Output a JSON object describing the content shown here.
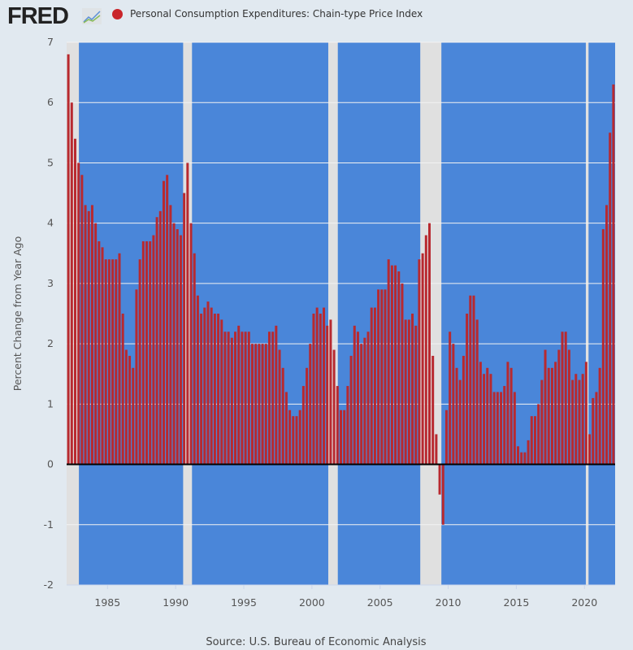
{
  "header": {
    "logo_text": "FRED",
    "legend_label": "Personal Consumption Expenditures: Chain-type Price Index"
  },
  "colors": {
    "series": "#b8292f",
    "plot_background": "#4a86d9",
    "recession": "#e0e0e0",
    "page": "#e1e9f0"
  },
  "chart_data": {
    "type": "bar",
    "title": "",
    "ylabel": "Percent Change from Year Ago",
    "xlabel": "",
    "frequency": "quarterly",
    "start": "1982-Q1",
    "ylim": [
      -2,
      7
    ],
    "xlim": [
      1982.0,
      2022.25
    ],
    "yticks": [
      -2,
      -1,
      0,
      1,
      2,
      3,
      4,
      5,
      6,
      7
    ],
    "xticks": [
      "1985",
      "1990",
      "1995",
      "2000",
      "2005",
      "2010",
      "2015",
      "2020"
    ],
    "grid": true,
    "legend_position": "top",
    "recessions": [
      [
        1981.5,
        1982.9
      ],
      [
        1990.55,
        1991.2
      ],
      [
        2001.2,
        2001.9
      ],
      [
        2007.95,
        2009.5
      ],
      [
        2020.1,
        2020.3
      ]
    ],
    "values": [
      6.8,
      6.0,
      5.4,
      5.0,
      4.8,
      4.3,
      4.2,
      4.3,
      4.0,
      3.7,
      3.6,
      3.4,
      3.4,
      3.4,
      3.4,
      3.5,
      2.5,
      1.9,
      1.8,
      1.6,
      2.9,
      3.4,
      3.7,
      3.7,
      3.7,
      3.8,
      4.1,
      4.2,
      4.7,
      4.8,
      4.3,
      4.0,
      3.9,
      3.8,
      4.5,
      5.0,
      4.0,
      3.5,
      2.8,
      2.5,
      2.6,
      2.7,
      2.6,
      2.5,
      2.5,
      2.4,
      2.2,
      2.2,
      2.1,
      2.2,
      2.3,
      2.2,
      2.2,
      2.2,
      2.0,
      2.0,
      2.0,
      2.0,
      2.0,
      2.2,
      2.2,
      2.3,
      1.9,
      1.6,
      1.2,
      0.9,
      0.8,
      0.8,
      0.9,
      1.3,
      1.6,
      2.0,
      2.5,
      2.6,
      2.5,
      2.6,
      2.3,
      2.4,
      1.9,
      1.3,
      0.9,
      0.9,
      1.3,
      1.8,
      2.3,
      2.2,
      2.0,
      2.1,
      2.2,
      2.6,
      2.6,
      2.9,
      2.9,
      2.9,
      3.4,
      3.3,
      3.3,
      3.2,
      3.0,
      2.4,
      2.4,
      2.5,
      2.3,
      3.4,
      3.5,
      3.8,
      4.0,
      1.8,
      0.5,
      -0.5,
      -1.0,
      0.9,
      2.2,
      2.0,
      1.6,
      1.4,
      1.8,
      2.5,
      2.8,
      2.8,
      2.4,
      1.7,
      1.5,
      1.6,
      1.5,
      1.2,
      1.2,
      1.2,
      1.3,
      1.7,
      1.6,
      1.2,
      0.3,
      0.2,
      0.2,
      0.4,
      0.8,
      0.8,
      1.0,
      1.4,
      1.9,
      1.6,
      1.6,
      1.7,
      1.9,
      2.2,
      2.2,
      1.9,
      1.4,
      1.5,
      1.4,
      1.5,
      1.7,
      0.5,
      1.1,
      1.2,
      1.6,
      3.9,
      4.3,
      5.5,
      6.3
    ],
    "source": "Source: U.S. Bureau of Economic Analysis"
  }
}
